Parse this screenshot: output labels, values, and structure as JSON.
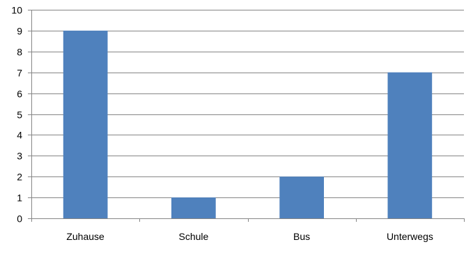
{
  "chart_data": {
    "type": "bar",
    "categories": [
      "Zuhause",
      "Schule",
      "Bus",
      "Unterwegs"
    ],
    "values": [
      9,
      1,
      2,
      7
    ],
    "ylim": [
      0,
      10
    ],
    "yticks": [
      "0",
      "1",
      "2",
      "3",
      "4",
      "5",
      "6",
      "7",
      "8",
      "9",
      "10"
    ],
    "grid": true,
    "legend": "none",
    "bar_color": "#4F81BD",
    "grid_color": "#868686",
    "axis_color": "#868686"
  }
}
